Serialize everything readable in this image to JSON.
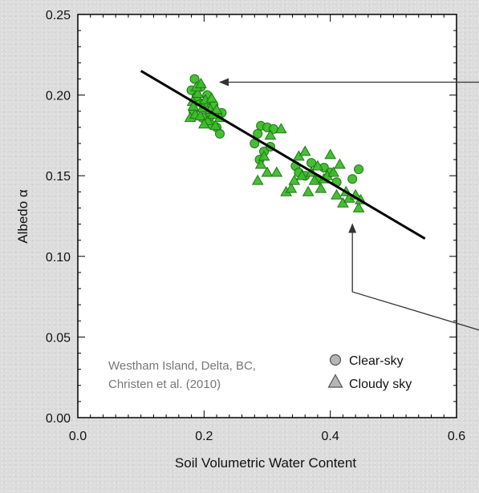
{
  "chart_data": {
    "type": "scatter",
    "xlabel": "Soil Volumetric Water Content",
    "ylabel": "Albedo α",
    "xlim": [
      0.0,
      0.6
    ],
    "ylim": [
      0.0,
      0.25
    ],
    "x_ticks": [
      "0.0",
      "0.2",
      "0.4",
      "0.6"
    ],
    "y_ticks": [
      "0.00",
      "0.05",
      "0.10",
      "0.15",
      "0.20",
      "0.25"
    ],
    "grid": false,
    "legend_position": "bottom-right",
    "annotation": [
      "Westham Island, Delta, BC,",
      "Christen et al. (2010)"
    ],
    "colors": {
      "marker_fill": "#3dbb2b",
      "marker_edge": "#1d7a12",
      "legend_fill": "#b5b5b5",
      "fit_line": "#000000",
      "arrow": "#333333"
    },
    "series": [
      {
        "name": "Clear-sky",
        "marker": "circle",
        "points": [
          [
            0.18,
            0.203
          ],
          [
            0.185,
            0.21
          ],
          [
            0.19,
            0.196
          ],
          [
            0.195,
            0.205
          ],
          [
            0.2,
            0.192
          ],
          [
            0.205,
            0.2
          ],
          [
            0.21,
            0.187
          ],
          [
            0.215,
            0.194
          ],
          [
            0.22,
            0.18
          ],
          [
            0.225,
            0.176
          ],
          [
            0.228,
            0.189
          ],
          [
            0.21,
            0.182
          ],
          [
            0.183,
            0.19
          ],
          [
            0.197,
            0.186
          ],
          [
            0.188,
            0.199
          ],
          [
            0.2,
            0.195
          ],
          [
            0.28,
            0.17
          ],
          [
            0.285,
            0.176
          ],
          [
            0.29,
            0.181
          ],
          [
            0.295,
            0.165
          ],
          [
            0.3,
            0.18
          ],
          [
            0.305,
            0.168
          ],
          [
            0.31,
            0.179
          ],
          [
            0.288,
            0.16
          ],
          [
            0.345,
            0.156
          ],
          [
            0.35,
            0.152
          ],
          [
            0.36,
            0.15
          ],
          [
            0.37,
            0.158
          ],
          [
            0.38,
            0.148
          ],
          [
            0.39,
            0.155
          ],
          [
            0.4,
            0.152
          ],
          [
            0.435,
            0.148
          ],
          [
            0.445,
            0.154
          ],
          [
            0.41,
            0.146
          ]
        ]
      },
      {
        "name": "Cloudy sky",
        "marker": "triangle",
        "points": [
          [
            0.178,
            0.186
          ],
          [
            0.182,
            0.196
          ],
          [
            0.186,
            0.188
          ],
          [
            0.19,
            0.201
          ],
          [
            0.194,
            0.187
          ],
          [
            0.198,
            0.192
          ],
          [
            0.202,
            0.197
          ],
          [
            0.206,
            0.184
          ],
          [
            0.21,
            0.191
          ],
          [
            0.214,
            0.188
          ],
          [
            0.218,
            0.181
          ],
          [
            0.225,
            0.186
          ],
          [
            0.188,
            0.205
          ],
          [
            0.195,
            0.207
          ],
          [
            0.2,
            0.182
          ],
          [
            0.212,
            0.198
          ],
          [
            0.183,
            0.193
          ],
          [
            0.22,
            0.191
          ],
          [
            0.285,
            0.147
          ],
          [
            0.29,
            0.157
          ],
          [
            0.295,
            0.162
          ],
          [
            0.3,
            0.152
          ],
          [
            0.305,
            0.175
          ],
          [
            0.315,
            0.152
          ],
          [
            0.322,
            0.179
          ],
          [
            0.33,
            0.14
          ],
          [
            0.338,
            0.142
          ],
          [
            0.343,
            0.147
          ],
          [
            0.35,
            0.162
          ],
          [
            0.355,
            0.15
          ],
          [
            0.36,
            0.165
          ],
          [
            0.365,
            0.14
          ],
          [
            0.37,
            0.152
          ],
          [
            0.375,
            0.147
          ],
          [
            0.38,
            0.156
          ],
          [
            0.385,
            0.142
          ],
          [
            0.39,
            0.148
          ],
          [
            0.395,
            0.15
          ],
          [
            0.4,
            0.163
          ],
          [
            0.405,
            0.152
          ],
          [
            0.41,
            0.138
          ],
          [
            0.415,
            0.157
          ],
          [
            0.42,
            0.133
          ],
          [
            0.425,
            0.14
          ],
          [
            0.43,
            0.136
          ],
          [
            0.44,
            0.138
          ],
          [
            0.445,
            0.13
          ],
          [
            0.448,
            0.135
          ]
        ]
      }
    ],
    "fit_line": {
      "x": [
        0.1,
        0.55
      ],
      "y": [
        0.215,
        0.111
      ]
    },
    "arrows": [
      {
        "from": [
          0.647,
          0.208
        ],
        "to": [
          0.225,
          0.208
        ],
        "bend": []
      },
      {
        "from": [
          0.647,
          0.053
        ],
        "to": [
          0.435,
          0.12
        ],
        "bend": [
          0.435,
          0.078
        ]
      }
    ]
  }
}
